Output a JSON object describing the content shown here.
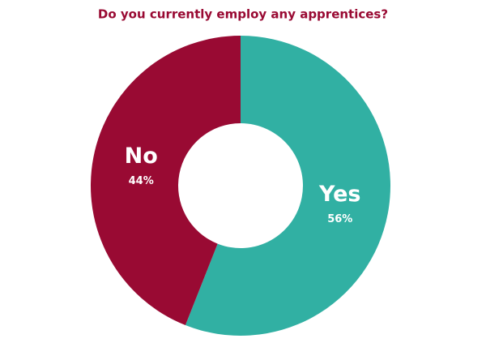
{
  "chart_data": {
    "type": "donut",
    "title": "Do you currently employ any apprentices?",
    "categories": [
      "Yes",
      "No"
    ],
    "values": [
      56,
      44
    ],
    "value_labels": [
      "56%",
      "44%"
    ],
    "colors": [
      "#31b0a3",
      "#990a33"
    ]
  }
}
